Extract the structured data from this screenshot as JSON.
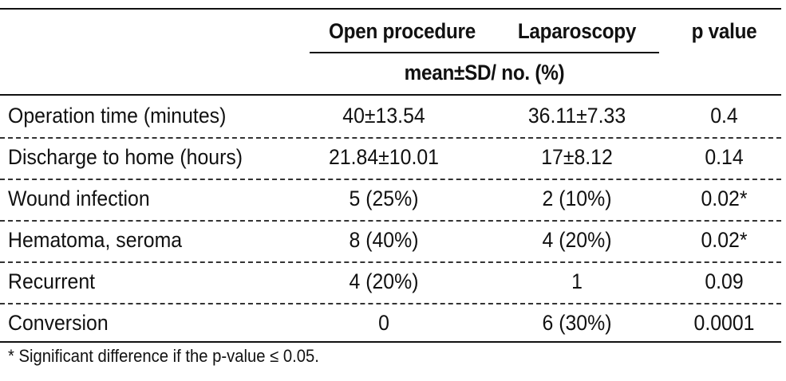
{
  "table": {
    "headers": {
      "label": "",
      "open": "Open procedure",
      "laparoscopy": "Laparoscopy",
      "p": "p value",
      "subheader": "mean±SD/ no. (%)"
    },
    "rows": [
      {
        "label": "Operation time (minutes)",
        "open": "40±13.54",
        "laparoscopy": "36.11±7.33",
        "p": "0.4"
      },
      {
        "label": "Discharge to home (hours)",
        "open": "21.84±10.01",
        "laparoscopy": "17±8.12",
        "p": "0.14"
      },
      {
        "label": "Wound infection",
        "open": "5 (25%)",
        "laparoscopy": "2 (10%)",
        "p": "0.02*"
      },
      {
        "label": "Hematoma, seroma",
        "open": "8 (40%)",
        "laparoscopy": "4 (20%)",
        "p": "0.02*"
      },
      {
        "label": "Recurrent",
        "open": "4 (20%)",
        "laparoscopy": "1",
        "p": "0.09"
      },
      {
        "label": "Conversion",
        "open": "0",
        "laparoscopy": "6 (30%)",
        "p": "0.0001"
      }
    ],
    "footnote": "* Significant difference if the p-value ≤ 0.05."
  }
}
